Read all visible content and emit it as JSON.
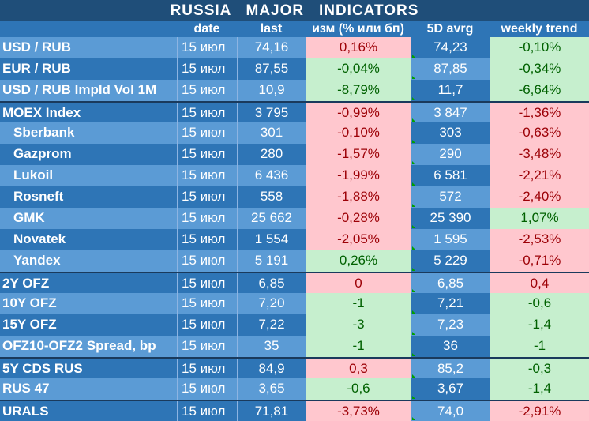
{
  "title": "RUSSIA   MAJOR   INDICATORS",
  "columns": [
    "",
    "date",
    "last",
    "изм (% или бп)",
    "5D avrg",
    "weekly trend"
  ],
  "rows": [
    {
      "name": "USD / RUB",
      "date": "15 июл",
      "last": "74,16",
      "chg": "0,16%",
      "chg_sign": "neg",
      "avg": "74,23",
      "wk": "-0,10%",
      "wk_sign": "pos",
      "indent": false,
      "sep": false
    },
    {
      "name": "EUR / RUB",
      "date": "15 июл",
      "last": "87,55",
      "chg": "-0,04%",
      "chg_sign": "pos",
      "avg": "87,85",
      "wk": "-0,34%",
      "wk_sign": "pos",
      "indent": false,
      "sep": false
    },
    {
      "name": "USD / RUB Impld Vol 1M",
      "date": "15 июл",
      "last": "10,9",
      "chg": "-8,79%",
      "chg_sign": "pos",
      "avg": "11,7",
      "wk": "-6,64%",
      "wk_sign": "pos",
      "indent": false,
      "sep": false
    },
    {
      "name": "MOEX Index",
      "date": "15 июл",
      "last": "3 795",
      "chg": "-0,99%",
      "chg_sign": "neg",
      "avg": "3 847",
      "wk": "-1,36%",
      "wk_sign": "neg",
      "indent": false,
      "sep": true
    },
    {
      "name": "Sberbank",
      "date": "15 июл",
      "last": "301",
      "chg": "-0,10%",
      "chg_sign": "neg",
      "avg": "303",
      "wk": "-0,63%",
      "wk_sign": "neg",
      "indent": true,
      "sep": false
    },
    {
      "name": "Gazprom",
      "date": "15 июл",
      "last": "280",
      "chg": "-1,57%",
      "chg_sign": "neg",
      "avg": "290",
      "wk": "-3,48%",
      "wk_sign": "neg",
      "indent": true,
      "sep": false
    },
    {
      "name": "Lukoil",
      "date": "15 июл",
      "last": "6 436",
      "chg": "-1,99%",
      "chg_sign": "neg",
      "avg": "6 581",
      "wk": "-2,21%",
      "wk_sign": "neg",
      "indent": true,
      "sep": false
    },
    {
      "name": "Rosneft",
      "date": "15 июл",
      "last": "558",
      "chg": "-1,88%",
      "chg_sign": "neg",
      "avg": "572",
      "wk": "-2,40%",
      "wk_sign": "neg",
      "indent": true,
      "sep": false
    },
    {
      "name": "GMK",
      "date": "15 июл",
      "last": "25 662",
      "chg": "-0,28%",
      "chg_sign": "neg",
      "avg": "25 390",
      "wk": "1,07%",
      "wk_sign": "pos",
      "indent": true,
      "sep": false
    },
    {
      "name": "Novatek",
      "date": "15 июл",
      "last": "1 554",
      "chg": "-2,05%",
      "chg_sign": "neg",
      "avg": "1 595",
      "wk": "-2,53%",
      "wk_sign": "neg",
      "indent": true,
      "sep": false
    },
    {
      "name": "Yandex",
      "date": "15 июл",
      "last": "5 191",
      "chg": "0,26%",
      "chg_sign": "pos",
      "avg": "5 229",
      "wk": "-0,71%",
      "wk_sign": "neg",
      "indent": true,
      "sep": false
    },
    {
      "name": "2Y OFZ",
      "date": "15 июл",
      "last": "6,85",
      "chg": "0",
      "chg_sign": "neg",
      "avg": "6,85",
      "wk": "0,4",
      "wk_sign": "neg",
      "indent": false,
      "sep": true
    },
    {
      "name": "10Y OFZ",
      "date": "15 июл",
      "last": "7,20",
      "chg": "-1",
      "chg_sign": "pos",
      "avg": "7,21",
      "wk": "-0,6",
      "wk_sign": "pos",
      "indent": false,
      "sep": false
    },
    {
      "name": "15Y OFZ",
      "date": "15 июл",
      "last": "7,22",
      "chg": "-3",
      "chg_sign": "pos",
      "avg": "7,23",
      "wk": "-1,4",
      "wk_sign": "pos",
      "indent": false,
      "sep": false
    },
    {
      "name": "OFZ10-OFZ2 Spread, bp",
      "date": "15 июл",
      "last": "35",
      "chg": "-1",
      "chg_sign": "pos",
      "avg": "36",
      "wk": "-1",
      "wk_sign": "pos",
      "indent": false,
      "sep": false
    },
    {
      "name": "5Y CDS RUS",
      "date": "15 июл",
      "last": "84,9",
      "chg": "0,3",
      "chg_sign": "neg",
      "avg": "85,2",
      "wk": "-0,3",
      "wk_sign": "pos",
      "indent": false,
      "sep": true
    },
    {
      "name": "RUS 47",
      "date": "15 июл",
      "last": "3,65",
      "chg": "-0,6",
      "chg_sign": "pos",
      "avg": "3,67",
      "wk": "-1,4",
      "wk_sign": "pos",
      "indent": false,
      "sep": false
    },
    {
      "name": "URALS",
      "date": "15 июл",
      "last": "71,81",
      "chg": "-3,73%",
      "chg_sign": "neg",
      "avg": "74,0",
      "wk": "-2,91%",
      "wk_sign": "neg",
      "indent": false,
      "sep": true
    }
  ]
}
